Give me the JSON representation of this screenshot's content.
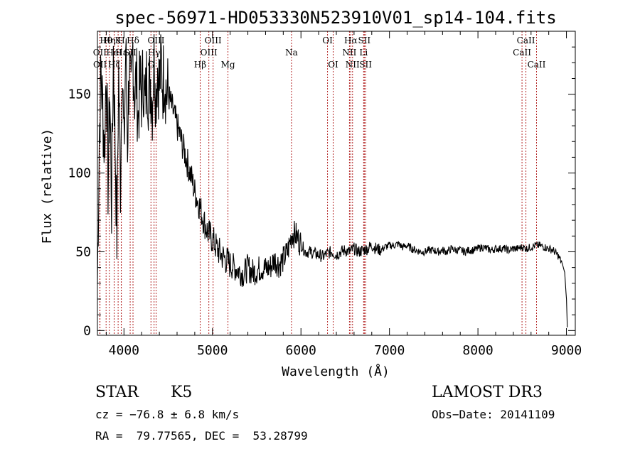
{
  "chart_data": {
    "type": "line",
    "title": "spec-56971-HD053330N523910V01_sp14-104.fits",
    "xlabel": "Wavelength (Å)",
    "ylabel": "Flux (relative)",
    "xlim": [
      3700,
      9100
    ],
    "ylim": [
      -3,
      190
    ],
    "x_ticks": [
      4000,
      5000,
      6000,
      7000,
      8000,
      9000
    ],
    "y_ticks": [
      0,
      50,
      100,
      150
    ],
    "grid": false,
    "series": [
      {
        "x": [
          3700,
          3720,
          3740,
          3760,
          3780,
          3800,
          3820,
          3840,
          3860,
          3880,
          3900,
          3920,
          3940,
          3960,
          3980,
          4000,
          4020,
          4040,
          4060,
          4080,
          4100,
          4120,
          4140,
          4160,
          4180,
          4200,
          4220,
          4240,
          4260,
          4280,
          4300,
          4320,
          4340,
          4360,
          4380,
          4400,
          4420,
          4440,
          4460,
          4480,
          4500,
          4550,
          4600,
          4650,
          4700,
          4750,
          4800,
          4850,
          4900,
          4950,
          5000,
          5050,
          5100,
          5150,
          5200,
          5250,
          5300,
          5350,
          5400,
          5450,
          5500,
          5550,
          5600,
          5650,
          5700,
          5750,
          5800,
          5850,
          5900,
          5950,
          6000,
          6050,
          6100,
          6150,
          6200,
          6250,
          6300,
          6350,
          6400,
          6450,
          6500,
          6550,
          6600,
          6650,
          6700,
          6750,
          6800,
          6850,
          6900,
          6950,
          7000,
          7050,
          7100,
          7150,
          7200,
          7250,
          7300,
          7350,
          7400,
          7450,
          7500,
          7550,
          7600,
          7650,
          7700,
          7750,
          7800,
          7850,
          7900,
          7950,
          8000,
          8050,
          8100,
          8150,
          8200,
          8250,
          8300,
          8350,
          8400,
          8450,
          8500,
          8550,
          8600,
          8650,
          8700,
          8750,
          8800,
          8850,
          8900,
          8950,
          8980,
          9000,
          9010
        ],
        "y": [
          30,
          120,
          165,
          140,
          115,
          170,
          95,
          150,
          80,
          178,
          120,
          60,
          165,
          95,
          175,
          110,
          182,
          120,
          170,
          140,
          180,
          150,
          160,
          135,
          155,
          150,
          162,
          140,
          165,
          150,
          160,
          145,
          178,
          150,
          168,
          155,
          170,
          158,
          165,
          150,
          150,
          140,
          130,
          120,
          110,
          100,
          88,
          80,
          70,
          62,
          58,
          52,
          48,
          45,
          42,
          40,
          38,
          36,
          40,
          37,
          38,
          40,
          39,
          40,
          45,
          42,
          45,
          50,
          62,
          60,
          55,
          50,
          50,
          49,
          48,
          47,
          49,
          50,
          48,
          50,
          51,
          50,
          52,
          50,
          51,
          52,
          54,
          52,
          51,
          53,
          54,
          54,
          55,
          53,
          54,
          52,
          51,
          50,
          50,
          51,
          51,
          50,
          51,
          50,
          52,
          51,
          51,
          50,
          51,
          51,
          52,
          53,
          52,
          51,
          52,
          52,
          52,
          51,
          52,
          52,
          53,
          52,
          53,
          54,
          54,
          53,
          52,
          51,
          48,
          43,
          37,
          20,
          2
        ]
      }
    ],
    "lines": [
      {
        "name": "Hθ",
        "wl": 3798,
        "row": 1
      },
      {
        "name": "OII",
        "wl": 3727,
        "row": 2
      },
      {
        "name": "OII",
        "wl": 3729,
        "row": 3
      },
      {
        "name": "K",
        "wl": 3934,
        "row": 1
      },
      {
        "name": "H",
        "wl": 3969,
        "row": 1
      },
      {
        "name": "Hε",
        "wl": 3970,
        "row": 2
      },
      {
        "name": "Hη",
        "wl": 3835,
        "row": 1
      },
      {
        "name": "HeI",
        "wl": 3889,
        "row": 2
      },
      {
        "name": "Hζ",
        "wl": 3889,
        "row": 3
      },
      {
        "name": "SII",
        "wl": 4070,
        "row": 2
      },
      {
        "name": "Hδ",
        "wl": 4102,
        "row": 1
      },
      {
        "name": "OIII",
        "wl": 4363,
        "row": 1
      },
      {
        "name": "Hγ",
        "wl": 4340,
        "row": 2
      },
      {
        "name": "G",
        "wl": 4305,
        "row": 3
      },
      {
        "name": "OIII",
        "wl": 5007,
        "row": 1
      },
      {
        "name": "OIII",
        "wl": 4959,
        "row": 2
      },
      {
        "name": "Hβ",
        "wl": 4861,
        "row": 3
      },
      {
        "name": "Mg",
        "wl": 5175,
        "row": 3
      },
      {
        "name": "Na",
        "wl": 5893,
        "row": 2
      },
      {
        "name": "OI",
        "wl": 6300,
        "row": 1
      },
      {
        "name": "OI",
        "wl": 6364,
        "row": 3
      },
      {
        "name": "Hα",
        "wl": 6563,
        "row": 1
      },
      {
        "name": "SII",
        "wl": 6716,
        "row": 1
      },
      {
        "name": "NII",
        "wl": 6548,
        "row": 2
      },
      {
        "name": "Li",
        "wl": 6708,
        "row": 2
      },
      {
        "name": "NII",
        "wl": 6583,
        "row": 3
      },
      {
        "name": "SII",
        "wl": 6731,
        "row": 3
      },
      {
        "name": "CaII",
        "wl": 8542,
        "row": 1
      },
      {
        "name": "CaII",
        "wl": 8498,
        "row": 2
      },
      {
        "name": "CaII",
        "wl": 8662,
        "row": 3
      }
    ]
  },
  "info": {
    "class": "STAR",
    "subclass": "K5",
    "cz": "cz = −76.8 ± 6.8 km/s",
    "radec": "RA =  79.77565, DEC =  53.28799",
    "survey": "LAMOST DR3",
    "obsdate": "Obs−Date: 20141109"
  }
}
